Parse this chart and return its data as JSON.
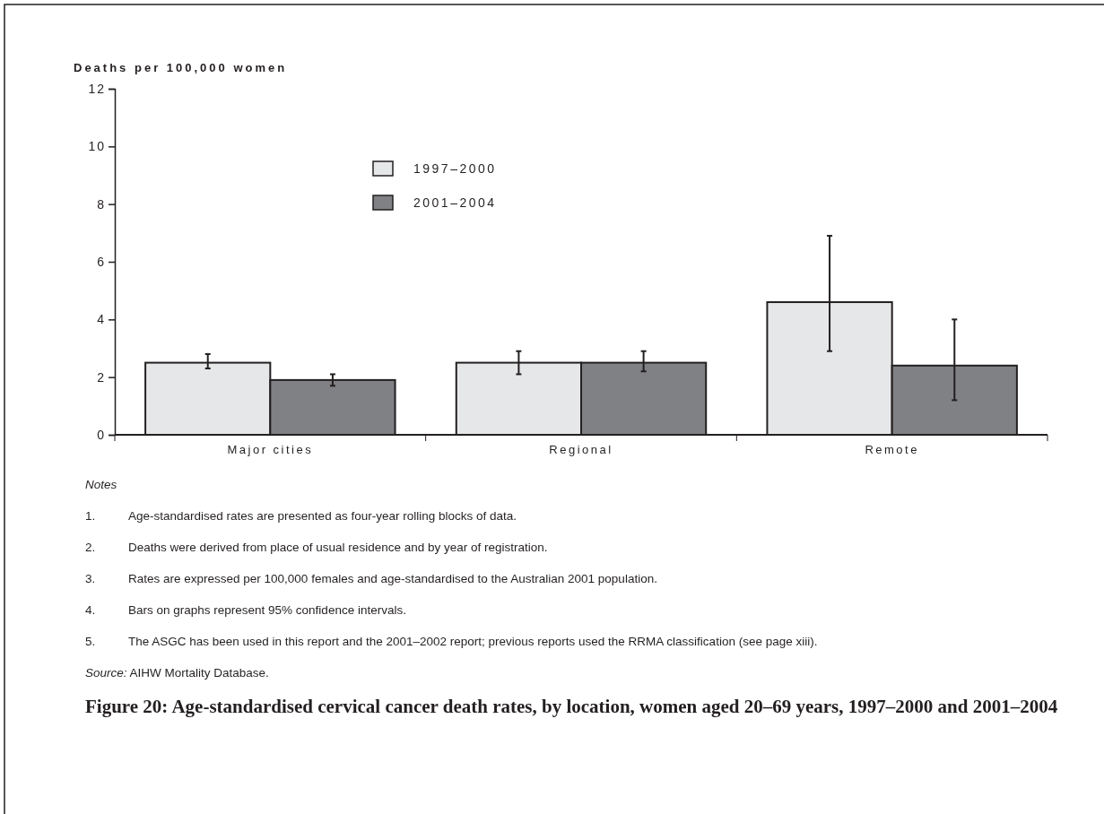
{
  "chart_data": {
    "type": "bar",
    "title": "Figure 20: Age-standardised cervical cancer death rates, by location, women aged 20–69 years, 1997–2000 and 2001–2004",
    "ylabel": "Deaths per 100,000 women",
    "categories": [
      "Major cities",
      "Regional",
      "Remote"
    ],
    "series": [
      {
        "name": "1997–2000",
        "color": "#e6e7e8",
        "values": [
          2.5,
          2.5,
          4.6
        ],
        "errors": [
          [
            2.3,
            2.8
          ],
          [
            2.1,
            2.9
          ],
          [
            2.9,
            6.9
          ]
        ]
      },
      {
        "name": "2001–2004",
        "color": "#808184",
        "values": [
          1.9,
          2.5,
          2.4
        ],
        "errors": [
          [
            1.7,
            2.1
          ],
          [
            2.2,
            2.9
          ],
          [
            1.2,
            4.0
          ]
        ]
      }
    ],
    "ylim": [
      0,
      12
    ],
    "yticks": [
      0,
      2,
      4,
      6,
      8,
      10,
      12
    ],
    "grid": false,
    "legend": "top left",
    "annotations": [
      "Notes",
      "1. Age-standardised rates are presented as four-year rolling blocks of data.",
      "2. Deaths were derived from place of usual residence and by year of registration.",
      "3. Rates are expressed per 100,000 females and age-standardised to the Australian 2001 population.",
      "4. Bars on graphs represent 95% confidence intervals.",
      "5. The ASGC has been used in this report and the 2001–2002 report; previous reports used the RRMA classification (see page xiii).",
      "Source: AIHW Mortality Database."
    ]
  }
}
